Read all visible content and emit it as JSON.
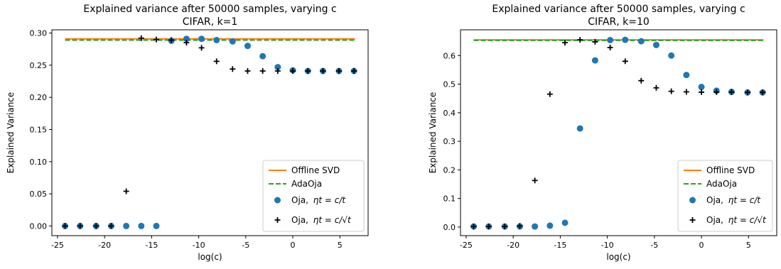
{
  "chart_data": [
    {
      "type": "scatter",
      "title": "Explained variance after 50000 samples, varying c",
      "subtitle": "CIFAR, k=1",
      "xlabel": "log(c)",
      "ylabel": "Explained Variance",
      "xlim": [
        -25.6,
        8.0
      ],
      "ylim": [
        -0.015,
        0.305
      ],
      "xticks": [
        -25,
        -20,
        -15,
        -10,
        -5,
        0,
        5
      ],
      "yticks": [
        0.0,
        0.05,
        0.1,
        0.15,
        0.2,
        0.25,
        0.3
      ],
      "ytick_labels": [
        "0.00",
        "0.05",
        "0.10",
        "0.15",
        "0.20",
        "0.25",
        "0.30"
      ],
      "grid": false,
      "legend_position": "lower right",
      "series": [
        {
          "name": "Offline SVD",
          "kind": "hline",
          "color": "#ff7f0e",
          "y": 0.291,
          "x_range": [
            -24.2,
            6.6
          ]
        },
        {
          "name": "AdaOja",
          "kind": "hline-dashed",
          "color": "#2ca02c",
          "y": 0.289,
          "x_range": [
            -24.2,
            6.6
          ]
        },
        {
          "name": "Oja, ",
          "name_math": "ηt = c/t",
          "kind": "circle",
          "color": "#1f77b4",
          "x": [
            -24.2,
            -22.6,
            -20.9,
            -19.3,
            -17.7,
            -16.1,
            -14.5,
            -12.9,
            -11.3,
            -9.7,
            -8.1,
            -6.4,
            -4.8,
            -3.2,
            -1.6,
            0.0,
            1.6,
            3.2,
            4.9,
            6.5
          ],
          "y": [
            0.0,
            0.0,
            0.0,
            0.0,
            0.0,
            0.0,
            0.0,
            0.288,
            0.291,
            0.291,
            0.289,
            0.287,
            0.28,
            0.264,
            0.247,
            0.242,
            0.241,
            0.241,
            0.241,
            0.241
          ]
        },
        {
          "name": "Oja, ",
          "name_math": "ηt = c/√t",
          "kind": "plus",
          "color": "#000000",
          "x": [
            -24.2,
            -22.6,
            -20.9,
            -19.3,
            -17.7,
            -16.1,
            -14.5,
            -12.9,
            -11.3,
            -9.7,
            -8.1,
            -6.4,
            -4.8,
            -3.2,
            -1.6,
            0.0,
            1.6,
            3.2,
            4.9,
            6.5
          ],
          "y": [
            0.0,
            0.0,
            0.0,
            0.0,
            0.054,
            0.292,
            0.29,
            0.289,
            0.285,
            0.277,
            0.256,
            0.244,
            0.241,
            0.241,
            0.241,
            0.241,
            0.241,
            0.241,
            0.241,
            0.241
          ]
        }
      ]
    },
    {
      "type": "scatter",
      "title": "Explained variance after 50000 samples, varying c",
      "subtitle": "CIFAR, k=10",
      "xlabel": "log(c)",
      "ylabel": "Explained Variance",
      "xlim": [
        -25.6,
        8.0
      ],
      "ylim": [
        -0.03,
        0.69
      ],
      "xticks": [
        -25,
        -20,
        -15,
        -10,
        -5,
        0,
        5
      ],
      "yticks": [
        0.0,
        0.1,
        0.2,
        0.3,
        0.4,
        0.5,
        0.6
      ],
      "ytick_labels": [
        "0.0",
        "0.1",
        "0.2",
        "0.3",
        "0.4",
        "0.5",
        "0.6"
      ],
      "grid": false,
      "legend_position": "lower right",
      "series": [
        {
          "name": "Offline SVD",
          "kind": "hline",
          "color": "#ff7f0e",
          "y": 0.655,
          "x_range": [
            -24.2,
            6.6
          ]
        },
        {
          "name": "AdaOja",
          "kind": "hline-dashed",
          "color": "#2ca02c",
          "y": 0.653,
          "x_range": [
            -24.2,
            6.6
          ]
        },
        {
          "name": "Oja, ",
          "name_math": "ηt = c/t",
          "kind": "circle",
          "color": "#1f77b4",
          "x": [
            -24.2,
            -22.6,
            -20.9,
            -19.3,
            -17.7,
            -16.1,
            -14.5,
            -12.9,
            -11.3,
            -9.7,
            -8.1,
            -6.4,
            -4.8,
            -3.2,
            -1.6,
            0.0,
            1.6,
            3.2,
            4.9,
            6.5
          ],
          "y": [
            0.002,
            0.002,
            0.002,
            0.002,
            0.002,
            0.005,
            0.015,
            0.345,
            0.583,
            0.654,
            0.655,
            0.65,
            0.637,
            0.6,
            0.532,
            0.49,
            0.477,
            0.473,
            0.471,
            0.471
          ]
        },
        {
          "name": "Oja, ",
          "name_math": "ηt = c/√t",
          "kind": "plus",
          "color": "#000000",
          "x": [
            -24.2,
            -22.6,
            -20.9,
            -19.3,
            -17.7,
            -16.1,
            -14.5,
            -12.9,
            -11.3,
            -9.7,
            -8.1,
            -6.4,
            -4.8,
            -3.2,
            -1.6,
            0.0,
            1.6,
            3.2,
            4.9,
            6.5
          ],
          "y": [
            0.002,
            0.002,
            0.002,
            0.004,
            0.163,
            0.465,
            0.645,
            0.655,
            0.648,
            0.628,
            0.58,
            0.512,
            0.487,
            0.475,
            0.473,
            0.472,
            0.472,
            0.472,
            0.471,
            0.471
          ]
        }
      ]
    }
  ]
}
